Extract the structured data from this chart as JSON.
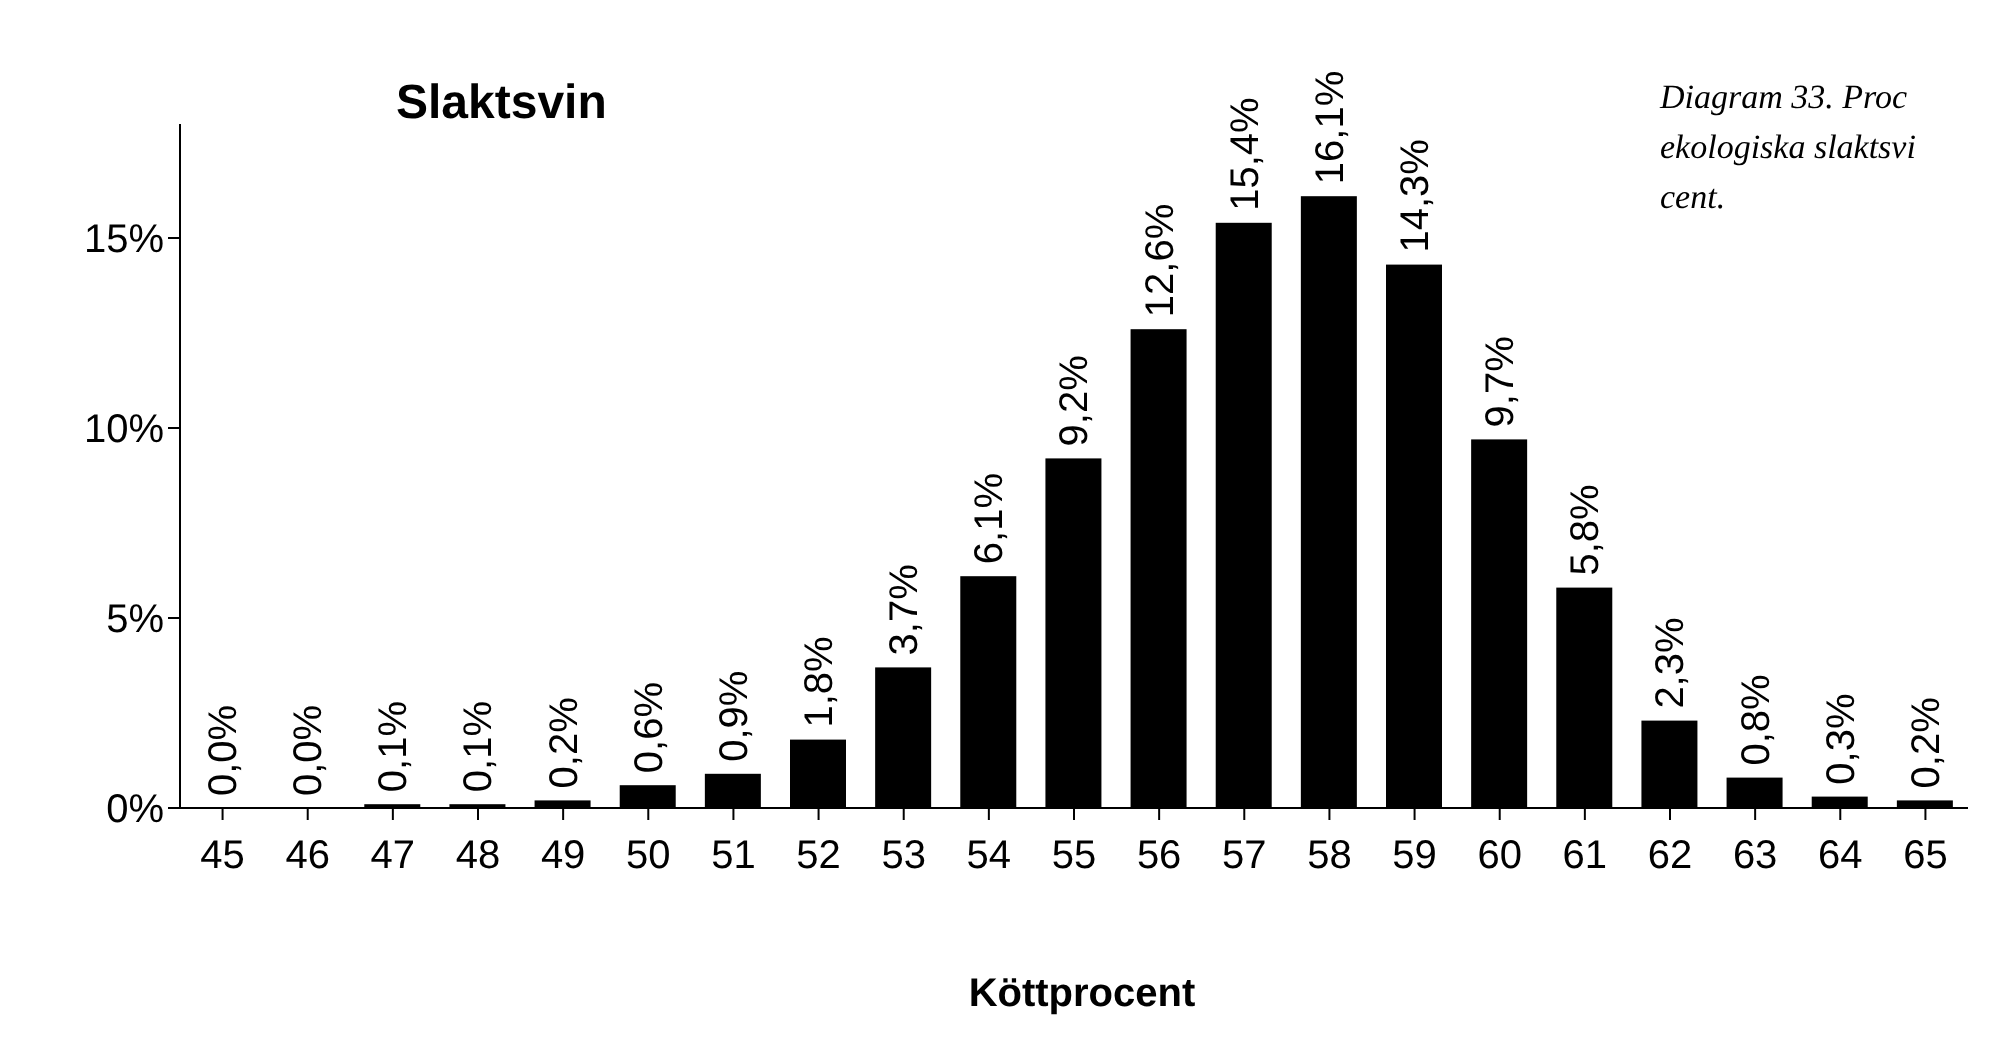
{
  "chart_data": {
    "type": "bar",
    "title": "Slaktsvin",
    "xlabel": "Köttprocent",
    "categories": [
      "45",
      "46",
      "47",
      "48",
      "49",
      "50",
      "51",
      "52",
      "53",
      "54",
      "55",
      "56",
      "57",
      "58",
      "59",
      "60",
      "61",
      "62",
      "63",
      "64",
      "65"
    ],
    "values": [
      0.0,
      0.0,
      0.1,
      0.1,
      0.2,
      0.6,
      0.9,
      1.8,
      3.7,
      6.1,
      9.2,
      12.6,
      15.4,
      16.1,
      14.3,
      9.7,
      5.8,
      2.3,
      0.8,
      0.3,
      0.2
    ],
    "value_labels": [
      "0,0%",
      "0,0%",
      "0,1%",
      "0,1%",
      "0,2%",
      "0,6%",
      "0,9%",
      "1,8%",
      "3,7%",
      "6,1%",
      "9,2%",
      "12,6%",
      "15,4%",
      "16,1%",
      "14,3%",
      "9,7%",
      "5,8%",
      "2,3%",
      "0,8%",
      "0,3%",
      "0,2%"
    ],
    "color": "#000000",
    "ylim": [
      0,
      18
    ],
    "yticks": [
      {
        "value": 0,
        "label": "0%"
      },
      {
        "value": 5,
        "label": "5%"
      },
      {
        "value": 10,
        "label": "10%"
      },
      {
        "value": 15,
        "label": "15%"
      }
    ],
    "annotations": [
      "Diagram 33. Proc",
      "ekologiska slaktsvi",
      "cent."
    ]
  }
}
